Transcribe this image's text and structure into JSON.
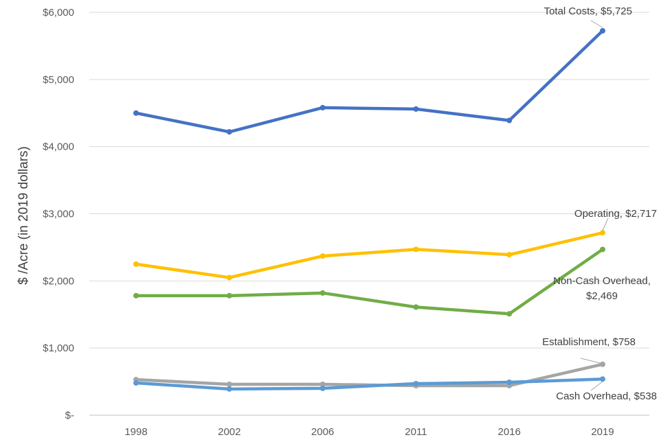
{
  "chart_data": {
    "type": "line",
    "ylabel": "$ /Acre (in 2019 dollars)",
    "x": [
      "1998",
      "2002",
      "2006",
      "2011",
      "2016",
      "2019"
    ],
    "y_tick_labels": [
      "$-",
      "$1,000",
      "$2,000",
      "$3,000",
      "$4,000",
      "$5,000",
      "$6,000"
    ],
    "y_ticks": [
      0,
      1000,
      2000,
      3000,
      4000,
      5000,
      6000
    ],
    "ylim": [
      0,
      6000
    ],
    "grid": "horizontal",
    "legend": "none",
    "series": [
      {
        "name": "Total Costs",
        "color": "#4472C4",
        "values": [
          4500,
          4220,
          4580,
          4560,
          4390,
          5725
        ],
        "label_lines": [
          "Total Costs,  $5,725"
        ]
      },
      {
        "name": "Operating",
        "color": "#FFC000",
        "values": [
          2250,
          2050,
          2370,
          2470,
          2390,
          2717
        ],
        "label_lines": [
          "Operating,  $2,717"
        ]
      },
      {
        "name": "Non-Cash Overhead",
        "color": "#70AD47",
        "values": [
          1780,
          1780,
          1820,
          1610,
          1510,
          2469
        ],
        "label_lines": [
          "Non-Cash Overhead,",
          "$2,469"
        ]
      },
      {
        "name": "Establishment",
        "color": "#A5A5A5",
        "values": [
          530,
          460,
          460,
          440,
          440,
          758
        ],
        "label_lines": [
          "Establishment,  $758"
        ]
      },
      {
        "name": "Cash Overhead",
        "color": "#5B9BD5",
        "values": [
          480,
          390,
          400,
          470,
          490,
          538
        ],
        "label_lines": [
          "Cash Overhead,  $538"
        ]
      }
    ]
  }
}
